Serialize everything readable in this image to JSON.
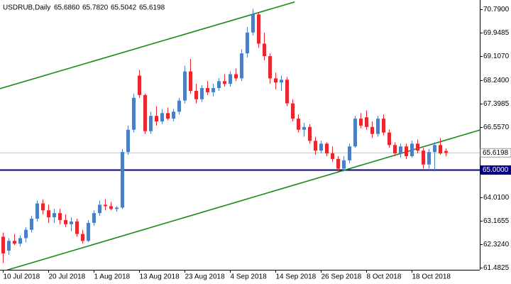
{
  "chart_data": {
    "type": "candlestick",
    "title": "USDRUB,Daily",
    "quote": [
      "65.6860",
      "65.7820",
      "65.5042",
      "65.6198"
    ],
    "categories": [
      "10 Jul 2018",
      null,
      null,
      null,
      null,
      null,
      null,
      null,
      "20 Jul 2018",
      null,
      null,
      null,
      null,
      null,
      null,
      null,
      "1 Aug 2018",
      null,
      null,
      null,
      null,
      null,
      null,
      null,
      "13 Aug 2018",
      null,
      null,
      null,
      null,
      null,
      null,
      null,
      "23 Aug 2018",
      null,
      null,
      null,
      null,
      null,
      null,
      null,
      "4 Sep 2018",
      null,
      null,
      null,
      null,
      null,
      null,
      null,
      "14 Sep 2018",
      null,
      null,
      null,
      null,
      null,
      null,
      null,
      "26 Sep 2018",
      null,
      null,
      null,
      null,
      null,
      null,
      null,
      "8 Oct 2018",
      null,
      null,
      null,
      null,
      null,
      null,
      null,
      "18 Oct 2018",
      null,
      null,
      null,
      null,
      null,
      null
    ],
    "series": [
      {
        "up_color": "#4a7fc1",
        "down_color": "#e8262b",
        "open": [
          62.6,
          62.1,
          62.45,
          62.35,
          62.55,
          62.85,
          63.25,
          63.8,
          63.55,
          63.3,
          63.45,
          63.2,
          63.05,
          63.15,
          62.7,
          62.45,
          63.1,
          63.45,
          63.75,
          63.7,
          63.6,
          63.65,
          65.65,
          66.45,
          68.4,
          67.7,
          66.4,
          66.95,
          66.75,
          67.05,
          66.85,
          67.1,
          67.5,
          68.55,
          67.85,
          67.55,
          67.95,
          67.8,
          67.95,
          68.2,
          68.1,
          68.45,
          68.3,
          69.2,
          69.95,
          70.6,
          69.55,
          69.1,
          68.3,
          68.15,
          68.25,
          67.4,
          66.85,
          66.45,
          66.55,
          66.05,
          65.7,
          65.95,
          65.6,
          65.4,
          65.05,
          65.35,
          65.85,
          66.85,
          66.9,
          66.55,
          66.3,
          66.85,
          66.35,
          65.9,
          65.6,
          65.85,
          65.5,
          65.95,
          65.7,
          65.2,
          65.65,
          65.9,
          65.686
        ],
        "high": [
          62.75,
          62.55,
          62.7,
          62.65,
          62.95,
          63.35,
          63.9,
          63.95,
          63.75,
          63.6,
          63.6,
          63.4,
          63.3,
          63.25,
          62.85,
          63.2,
          63.55,
          63.9,
          63.95,
          63.85,
          63.7,
          65.75,
          66.6,
          67.75,
          68.6,
          67.75,
          67.1,
          67.3,
          67.2,
          67.25,
          67.2,
          67.6,
          68.75,
          69.0,
          68.1,
          68.05,
          68.2,
          68.1,
          68.3,
          68.45,
          68.55,
          68.65,
          69.35,
          70.15,
          70.8,
          70.65,
          69.95,
          69.2,
          68.5,
          68.4,
          68.35,
          67.55,
          67.0,
          66.7,
          66.65,
          66.2,
          66.05,
          66.0,
          65.85,
          65.5,
          65.5,
          65.95,
          66.95,
          67.05,
          67.15,
          66.75,
          66.95,
          67.0,
          66.45,
          66.0,
          65.95,
          65.95,
          66.05,
          66.1,
          65.8,
          65.75,
          66.0,
          66.15,
          65.782
        ],
        "low": [
          61.65,
          61.95,
          62.3,
          62.25,
          62.4,
          62.75,
          63.15,
          63.4,
          63.1,
          63.1,
          63.05,
          62.95,
          62.8,
          62.6,
          62.35,
          62.4,
          63.0,
          63.35,
          63.55,
          63.55,
          63.5,
          63.6,
          65.55,
          66.35,
          67.6,
          66.3,
          66.3,
          66.6,
          66.65,
          66.8,
          66.75,
          67.0,
          67.4,
          67.75,
          67.4,
          67.45,
          67.7,
          67.65,
          67.85,
          68.0,
          68.0,
          68.2,
          68.2,
          69.05,
          69.85,
          69.4,
          68.95,
          68.1,
          67.9,
          67.85,
          67.3,
          66.75,
          66.35,
          66.2,
          65.95,
          65.55,
          65.6,
          65.5,
          65.3,
          64.95,
          64.95,
          65.25,
          65.8,
          66.5,
          66.45,
          66.15,
          66.2,
          66.25,
          65.8,
          65.5,
          65.45,
          65.4,
          65.45,
          65.6,
          65.05,
          65.05,
          64.95,
          65.55,
          65.5042
        ],
        "close": [
          62.0,
          62.45,
          62.35,
          62.55,
          62.85,
          63.25,
          63.8,
          63.55,
          63.3,
          63.45,
          63.2,
          63.05,
          63.15,
          62.7,
          62.45,
          63.1,
          63.45,
          63.75,
          63.7,
          63.6,
          63.65,
          65.65,
          66.45,
          67.6,
          67.7,
          66.4,
          66.95,
          66.75,
          67.05,
          66.85,
          67.1,
          67.5,
          68.55,
          67.85,
          67.55,
          67.95,
          67.8,
          67.95,
          68.2,
          68.1,
          68.45,
          68.3,
          69.2,
          69.95,
          70.6,
          69.55,
          69.1,
          68.3,
          68.15,
          68.25,
          67.4,
          66.85,
          66.45,
          66.55,
          66.05,
          65.7,
          65.95,
          65.6,
          65.4,
          65.05,
          65.35,
          65.85,
          66.85,
          66.6,
          66.55,
          66.3,
          66.85,
          66.35,
          65.9,
          65.6,
          65.85,
          65.5,
          65.95,
          65.7,
          65.2,
          65.65,
          65.9,
          65.6,
          65.6198
        ]
      }
    ],
    "ylim": [
      61.41,
      71.12
    ],
    "yticks": [
      {
        "value": 70.79,
        "label": "70.7900"
      },
      69.9485,
      {
        "value": 69.107,
        "label": "69.1070"
      },
      {
        "value": 68.24,
        "label": "68.2400"
      },
      67.3985,
      {
        "value": 66.557,
        "label": "66.5570"
      },
      {
        "value": 64.01,
        "label": "64.0100"
      },
      63.1655,
      {
        "value": 62.324,
        "label": "62.3240"
      },
      61.4825
    ],
    "price_line": {
      "value": 65.6198,
      "label": "65.6198",
      "color": "#c0c0c0"
    },
    "hline": {
      "value": 65,
      "label": "65.0000",
      "color": "#000080"
    },
    "trendlines": [
      {
        "color": "#1a8a1a",
        "points": [
          [
            -0.5,
            67.93
          ],
          [
            51.4,
            71.05
          ]
        ]
      },
      {
        "color": "#1a8a1a",
        "points": [
          [
            0.75,
            61.4
          ],
          [
            84,
            66.44
          ]
        ]
      }
    ]
  }
}
